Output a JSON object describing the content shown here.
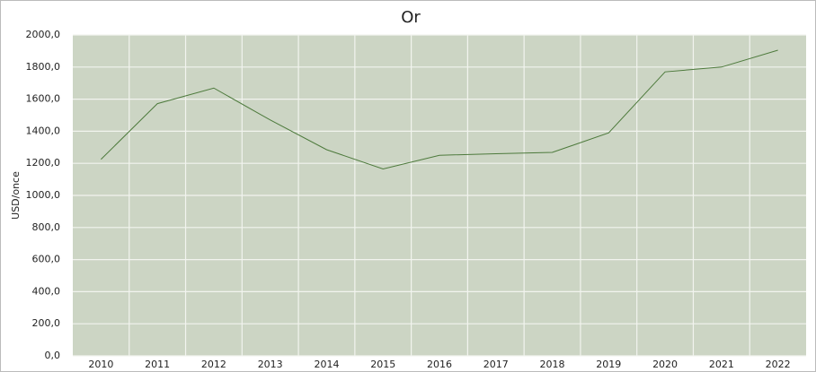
{
  "chart_data": {
    "type": "line",
    "title": "Or",
    "y_label": "USD/once",
    "categories": [
      "2010",
      "2011",
      "2012",
      "2013",
      "2014",
      "2015",
      "2016",
      "2017",
      "2018",
      "2019",
      "2020",
      "2021",
      "2022"
    ],
    "series": [
      {
        "name": "Or",
        "color": "#4d7a3c",
        "values": [
          1225,
          1572,
          1669,
          1470,
          1285,
          1165,
          1250,
          1260,
          1268,
          1390,
          1770,
          1800,
          1905
        ]
      }
    ],
    "ylim": [
      0,
      2000
    ],
    "yticks": [
      {
        "value": 0,
        "label": "0,0"
      },
      {
        "value": 200,
        "label": "200,0"
      },
      {
        "value": 400,
        "label": "400,0"
      },
      {
        "value": 600,
        "label": "600,0"
      },
      {
        "value": 800,
        "label": "800,0"
      },
      {
        "value": 1000,
        "label": "1000,0"
      },
      {
        "value": 1200,
        "label": "1200,0"
      },
      {
        "value": 1400,
        "label": "1400,0"
      },
      {
        "value": 1600,
        "label": "1600,0"
      },
      {
        "value": 1800,
        "label": "1800,0"
      },
      {
        "value": 2000,
        "label": "2000,0"
      }
    ],
    "grid": true
  }
}
